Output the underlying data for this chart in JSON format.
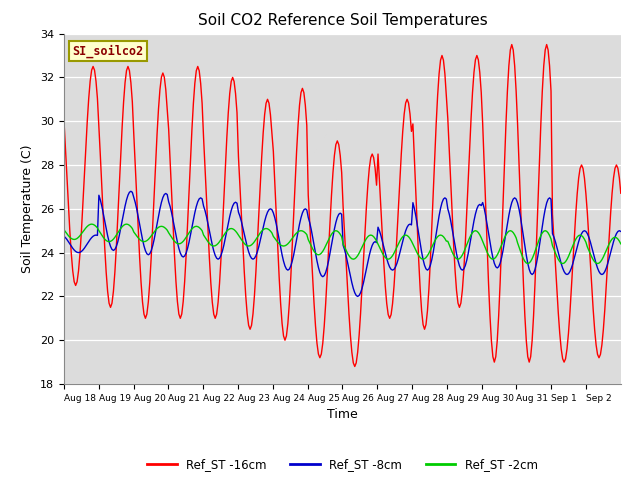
{
  "title": "Soil CO2 Reference Soil Temperatures",
  "xlabel": "Time",
  "ylabel": "Soil Temperature (C)",
  "ylim": [
    18,
    34
  ],
  "yticks": [
    18,
    20,
    22,
    24,
    26,
    28,
    30,
    32,
    34
  ],
  "plot_bg": "#dcdcdc",
  "fig_bg": "#ffffff",
  "legend_label": "SI_soilco2",
  "series_labels": [
    "Ref_ST -16cm",
    "Ref_ST -8cm",
    "Ref_ST -2cm"
  ],
  "series_colors": [
    "#ff0000",
    "#0000cc",
    "#00cc00"
  ],
  "xtick_labels": [
    "Aug 18",
    "Aug 19",
    "Aug 20",
    "Aug 21",
    "Aug 22",
    "Aug 23",
    "Aug 24",
    "Aug 25",
    "Aug 26",
    "Aug 27",
    "Aug 28",
    "Aug 29",
    "Aug 30",
    "Aug 31",
    "Sep 1",
    "Sep 2"
  ],
  "n_days": 16,
  "red_peaks": [
    32.5,
    32.5,
    32.2,
    32.5,
    32.0,
    31.0,
    31.5,
    29.1,
    28.5,
    31.0,
    33.0,
    33.0,
    33.5,
    33.5,
    28.0,
    28.0
  ],
  "red_troughs": [
    22.5,
    21.5,
    21.0,
    21.0,
    21.0,
    20.5,
    20.0,
    19.2,
    18.8,
    21.0,
    20.5,
    21.5,
    19.0,
    19.0,
    19.0,
    19.2
  ],
  "blue_peaks": [
    24.8,
    26.8,
    26.7,
    26.5,
    26.3,
    26.0,
    26.0,
    25.8,
    24.5,
    25.3,
    26.5,
    26.2,
    26.5,
    26.5,
    25.0,
    25.0
  ],
  "blue_troughs": [
    24.0,
    24.1,
    23.9,
    23.8,
    23.7,
    23.7,
    23.2,
    22.9,
    22.0,
    23.2,
    23.2,
    23.2,
    23.3,
    23.0,
    23.0,
    23.0
  ],
  "green_peaks": [
    25.3,
    25.3,
    25.2,
    25.2,
    25.1,
    25.1,
    25.0,
    25.0,
    24.8,
    24.8,
    24.8,
    25.0,
    25.0,
    25.0,
    24.8,
    24.7
  ],
  "green_troughs": [
    24.6,
    24.5,
    24.5,
    24.4,
    24.3,
    24.3,
    24.3,
    23.9,
    23.7,
    23.7,
    23.7,
    23.7,
    23.7,
    23.5,
    23.5,
    23.5
  ],
  "red_peak_hour": 14,
  "blue_peak_hour": 16,
  "green_peak_hour": 13,
  "pts_per_day": 24
}
